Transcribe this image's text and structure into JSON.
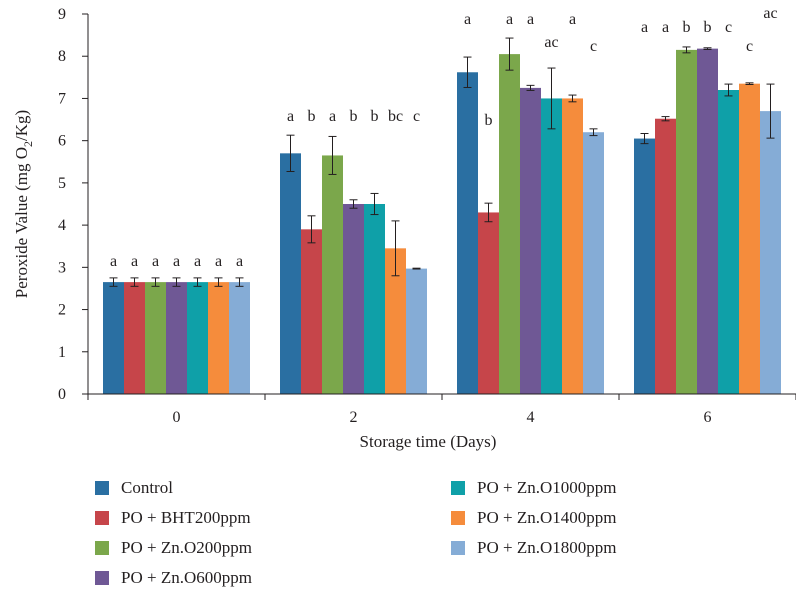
{
  "chart_data": {
    "type": "bar",
    "xlabel": "Storage time (Days)",
    "ylabel_parts": [
      "Peroxide Value (mg O",
      "2",
      "/Kg)"
    ],
    "ylim": [
      0,
      9
    ],
    "yticks": [
      "0",
      "1",
      "2",
      "3",
      "4",
      "5",
      "6",
      "7",
      "8",
      "9"
    ],
    "categories": [
      "0",
      "2",
      "4",
      "6"
    ],
    "legend_position": "bottom",
    "series": [
      {
        "name": "Control",
        "color": "#2a6fa2",
        "values": [
          2.65,
          5.7,
          7.62,
          6.05
        ],
        "errors": [
          0.1,
          0.43,
          0.36,
          0.12
        ],
        "letters": [
          "a",
          "a",
          "a",
          "a"
        ]
      },
      {
        "name": "PO + BHT200ppm",
        "color": "#c6454a",
        "values": [
          2.65,
          3.9,
          4.3,
          6.52
        ],
        "errors": [
          0.1,
          0.32,
          0.22,
          0.05
        ],
        "letters": [
          "a",
          "b",
          "b",
          "a"
        ]
      },
      {
        "name": "PO + Zn.O200ppm",
        "color": "#7ba74b",
        "values": [
          2.65,
          5.65,
          8.05,
          8.15
        ],
        "errors": [
          0.1,
          0.45,
          0.38,
          0.07
        ],
        "letters": [
          "a",
          "a",
          "a",
          "b"
        ]
      },
      {
        "name": "PO + Zn.O600ppm",
        "color": "#6f5895",
        "values": [
          2.65,
          4.5,
          7.25,
          8.18
        ],
        "errors": [
          0.1,
          0.1,
          0.06,
          0.02
        ],
        "letters": [
          "a",
          "b",
          "a",
          "b"
        ]
      },
      {
        "name": "PO + Zn.O1000ppm",
        "color": "#0fa0a8",
        "values": [
          2.65,
          4.5,
          7.0,
          7.2
        ],
        "errors": [
          0.1,
          0.25,
          0.72,
          0.14
        ],
        "letters": [
          "a",
          "b",
          "ac",
          "c"
        ]
      },
      {
        "name": "PO + Zn.O1400ppm",
        "color": "#f58c3c",
        "values": [
          2.65,
          3.45,
          7.0,
          7.35
        ],
        "errors": [
          0.1,
          0.65,
          0.08,
          0.02
        ],
        "letters": [
          "a",
          "bc",
          "a",
          "c"
        ]
      },
      {
        "name": "PO + Zn.O1800ppm",
        "color": "#85acd6",
        "values": [
          2.65,
          2.97,
          6.2,
          6.7
        ],
        "errors": [
          0.1,
          0.01,
          0.08,
          0.64
        ],
        "letters": [
          "a",
          "c",
          "c",
          "ac"
        ]
      }
    ]
  }
}
